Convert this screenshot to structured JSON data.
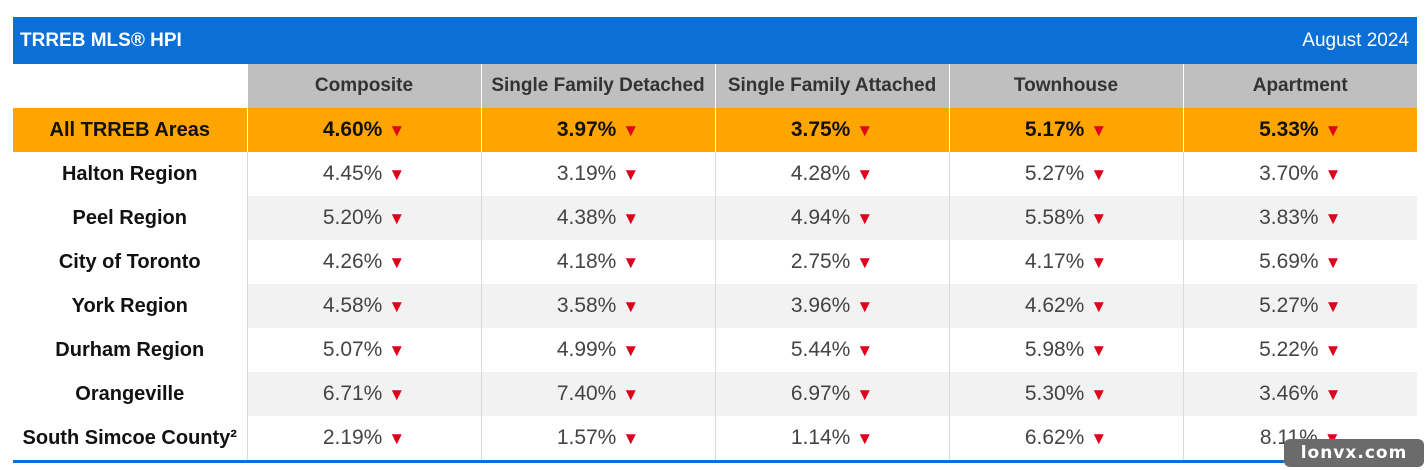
{
  "header": {
    "title": "TRREB MLS® HPI",
    "period": "August 2024"
  },
  "columns": [
    "Composite",
    "Single Family Detached",
    "Single Family Attached",
    "Townhouse",
    "Apartment"
  ],
  "arrow_glyph": "▼",
  "rows": [
    {
      "area": "All TRREB Areas",
      "values": [
        "4.60%",
        "3.97%",
        "3.75%",
        "5.17%",
        "5.33%"
      ]
    },
    {
      "area": "Halton Region",
      "values": [
        "4.45%",
        "3.19%",
        "4.28%",
        "5.27%",
        "3.70%"
      ]
    },
    {
      "area": "Peel Region",
      "values": [
        "5.20%",
        "4.38%",
        "4.94%",
        "5.58%",
        "3.83%"
      ]
    },
    {
      "area": "City of Toronto",
      "values": [
        "4.26%",
        "4.18%",
        "2.75%",
        "4.17%",
        "5.69%"
      ]
    },
    {
      "area": "York Region",
      "values": [
        "4.58%",
        "3.58%",
        "3.96%",
        "4.62%",
        "5.27%"
      ]
    },
    {
      "area": "Durham Region",
      "values": [
        "5.07%",
        "4.99%",
        "5.44%",
        "5.98%",
        "5.22%"
      ]
    },
    {
      "area": "Orangeville",
      "values": [
        "6.71%",
        "7.40%",
        "6.97%",
        "5.30%",
        "3.46%"
      ]
    },
    {
      "area": "South Simcoe County²",
      "values": [
        "2.19%",
        "1.57%",
        "1.14%",
        "6.62%",
        "8.11%"
      ]
    }
  ],
  "watermark": "lonvx.com",
  "colors": {
    "title_bar": "#0a6fd6",
    "header_row": "#bfbfbf",
    "total_row": "#ffa500",
    "arrow": "#e0001b"
  }
}
